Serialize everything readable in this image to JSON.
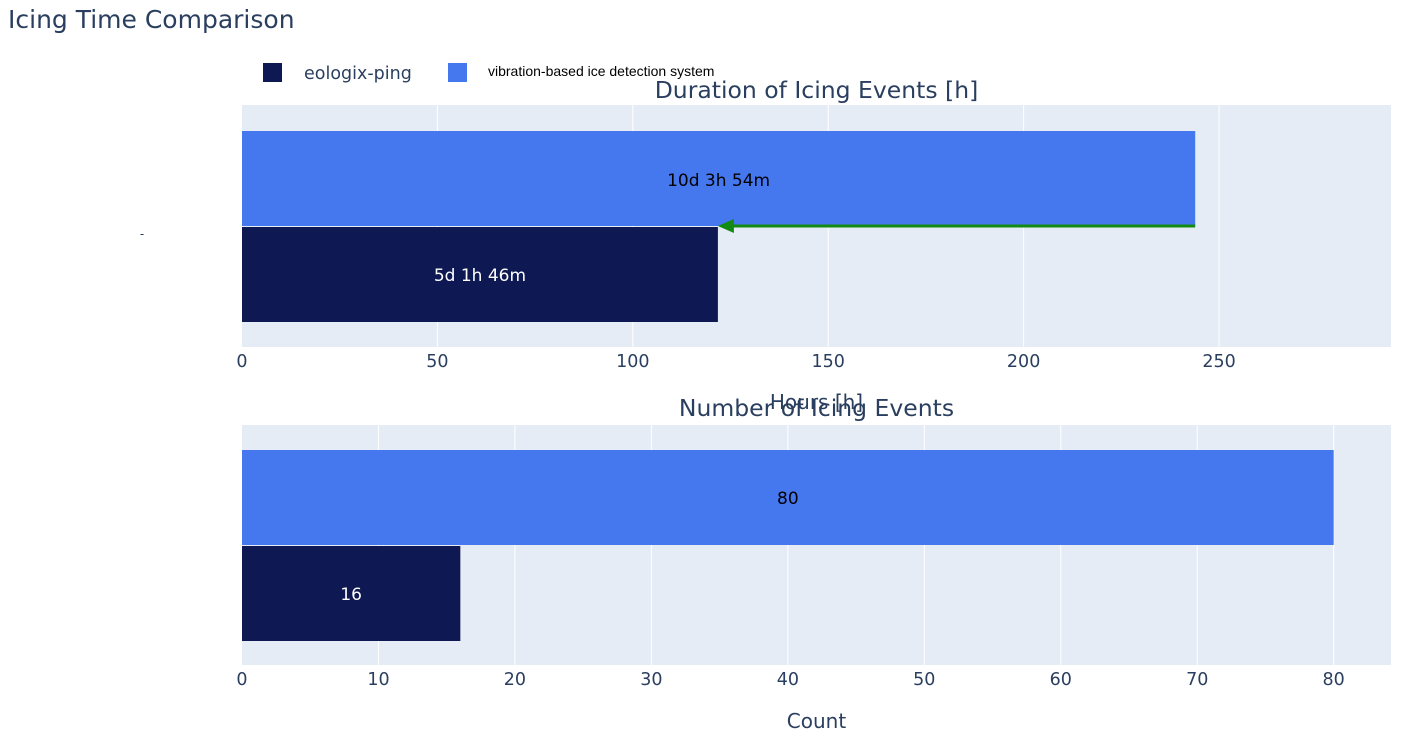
{
  "title": "Icing Time Comparison",
  "legend": [
    {
      "name": "eologix-ping",
      "color": "#0e1852"
    },
    {
      "name": "vibration-based ice detection system",
      "color": "#4577ef"
    }
  ],
  "chart_data": [
    {
      "type": "bar",
      "orientation": "horizontal",
      "title": "Duration of Icing Events [h]",
      "xlabel": "Hours [h]",
      "ylabel": "",
      "xlim": [
        0,
        294
      ],
      "xticks": [
        0,
        50,
        100,
        150,
        200,
        250
      ],
      "grid": true,
      "series": [
        {
          "name": "eologix-ping",
          "value": 121.77,
          "label": "5d 1h 46m",
          "color": "#0e1852",
          "label_color": "#ffffff"
        },
        {
          "name": "vibration-based ice detection system",
          "value": 243.9,
          "label": "10d 3h 54m",
          "color": "#4577ef",
          "label_color": "#000000"
        }
      ],
      "annotation": {
        "type": "arrow",
        "color": "#138a13",
        "from": 243.9,
        "to": 121.77
      }
    },
    {
      "type": "bar",
      "orientation": "horizontal",
      "title": "Number of Icing Events",
      "xlabel": "Count",
      "ylabel": "",
      "xlim": [
        0,
        84.2
      ],
      "xticks": [
        0,
        10,
        20,
        30,
        40,
        50,
        60,
        70,
        80
      ],
      "grid": true,
      "series": [
        {
          "name": "eologix-ping",
          "value": 16,
          "label": "16",
          "color": "#0e1852",
          "label_color": "#ffffff"
        },
        {
          "name": "vibration-based ice detection system",
          "value": 80,
          "label": "80",
          "color": "#4577ef",
          "label_color": "#000000"
        }
      ]
    }
  ]
}
